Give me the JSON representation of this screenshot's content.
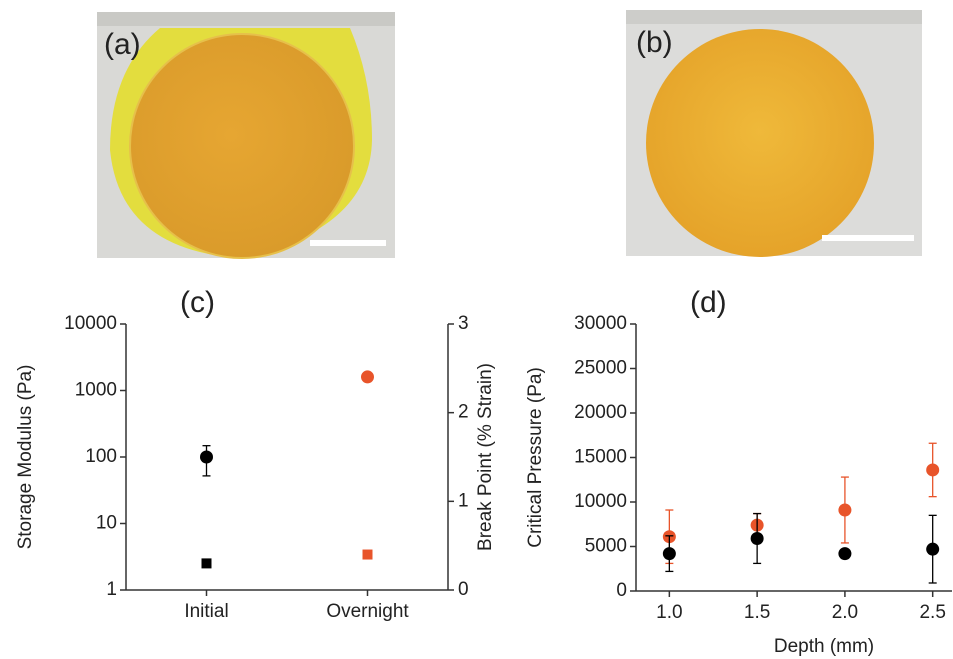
{
  "images": [
    {
      "label": "(a)"
    },
    {
      "label": "(b)"
    }
  ],
  "chart_data": [
    {
      "type": "scatter",
      "panel_label": "(c)",
      "categories": [
        "Initial",
        "Overnight"
      ],
      "ylabel": "Storage Modulus (Pa)",
      "y2label": "Break Point (% Strain)",
      "ylog": true,
      "ylim": [
        1,
        10000
      ],
      "yticks": [
        1,
        10,
        100,
        1000,
        10000
      ],
      "y2lim": [
        0,
        3
      ],
      "y2ticks": [
        0,
        1,
        2,
        3
      ],
      "series": [
        {
          "color": "#000000",
          "marker": "circle",
          "values": [
            100,
            null
          ],
          "errors": [
            48,
            null
          ]
        },
        {
          "color": "#e8542a",
          "marker": "circle",
          "values": [
            null,
            1600
          ],
          "errors": [
            null,
            null
          ]
        },
        {
          "color": "#000000",
          "marker": "square",
          "axis": "y2",
          "values": [
            0.3,
            null
          ],
          "errors": [
            null,
            null
          ]
        },
        {
          "color": "#e8542a",
          "marker": "square",
          "axis": "y2",
          "values": [
            null,
            0.4
          ],
          "errors": [
            null,
            null
          ]
        }
      ]
    },
    {
      "type": "scatter",
      "panel_label": "(d)",
      "xlabel": "Depth (mm)",
      "ylabel": "Critical Pressure (Pa)",
      "x": [
        1.0,
        1.5,
        2.0,
        2.5
      ],
      "xlim": [
        0.81,
        2.61
      ],
      "xticks": [
        {
          "value": 1.0,
          "label": "1.0"
        },
        {
          "value": 1.5,
          "label": "1.5"
        },
        {
          "value": 2.0,
          "label": "2.0"
        },
        {
          "value": 2.5,
          "label": "2.5"
        }
      ],
      "ylim": [
        0,
        30000
      ],
      "yticks": [
        0,
        5000,
        10000,
        15000,
        20000,
        25000,
        30000
      ],
      "series": [
        {
          "color": "#e8542a",
          "marker": "circle",
          "values": [
            6100,
            7400,
            9100,
            13600
          ],
          "errors": [
            3000,
            1300,
            3700,
            3000
          ]
        },
        {
          "color": "#000000",
          "marker": "circle",
          "values": [
            4200,
            5900,
            4200,
            4700
          ],
          "errors": [
            2000,
            2800,
            300,
            3800
          ]
        }
      ]
    }
  ]
}
